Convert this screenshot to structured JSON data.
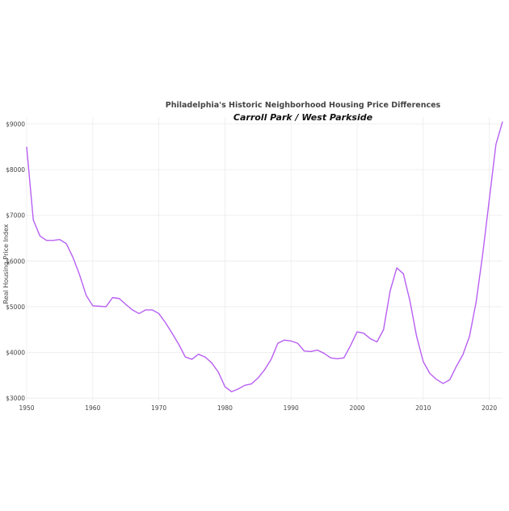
{
  "chart_data": {
    "type": "line",
    "title": "Philadelphia's Historic Neighborhood Housing Price Differences",
    "subtitle": "Carroll Park / West Parkside",
    "xlabel": "",
    "ylabel": "Real Housing Price Index",
    "xlim": [
      1950,
      2022
    ],
    "ylim": [
      2950,
      9150
    ],
    "x_ticks": [
      1950,
      1960,
      1970,
      1980,
      1990,
      2000,
      2010,
      2020
    ],
    "y_ticks": [
      3000,
      4000,
      5000,
      6000,
      7000,
      8000,
      9000
    ],
    "y_tick_labels": [
      "$3000",
      "$4000",
      "$5000",
      "$6000",
      "$7000",
      "$8000",
      "$9000"
    ],
    "grid": true,
    "line_color": "#b85ff2",
    "series": [
      {
        "x": [
          1950,
          1951,
          1952,
          1953,
          1954,
          1955,
          1956,
          1957,
          1958,
          1959,
          1960,
          1961,
          1962,
          1963,
          1964,
          1965,
          1966,
          1967,
          1968,
          1969,
          1970,
          1971,
          1972,
          1973,
          1974,
          1975,
          1976,
          1977,
          1978,
          1979,
          1980,
          1981,
          1982,
          1983,
          1984,
          1985,
          1986,
          1987,
          1988,
          1989,
          1990,
          1991,
          1992,
          1993,
          1994,
          1995,
          1996,
          1997,
          1998,
          1999,
          2000,
          2001,
          2002,
          2003,
          2004,
          2005,
          2006,
          2007,
          2008,
          2009,
          2010,
          2011,
          2012,
          2013,
          2014,
          2015,
          2016,
          2017,
          2018,
          2019,
          2020,
          2021,
          2022
        ],
        "values": [
          8500,
          6900,
          6550,
          6450,
          6450,
          6470,
          6380,
          6080,
          5700,
          5250,
          5020,
          5010,
          5000,
          5200,
          5180,
          5050,
          4930,
          4850,
          4930,
          4930,
          4850,
          4650,
          4420,
          4180,
          3900,
          3850,
          3960,
          3900,
          3770,
          3570,
          3250,
          3140,
          3200,
          3280,
          3310,
          3440,
          3620,
          3850,
          4200,
          4270,
          4250,
          4200,
          4030,
          4020,
          4050,
          3980,
          3880,
          3860,
          3880,
          4150,
          4450,
          4420,
          4300,
          4230,
          4500,
          5350,
          5850,
          5720,
          5120,
          4350,
          3800,
          3540,
          3410,
          3320,
          3400,
          3690,
          3950,
          4350,
          5100,
          6150,
          7350,
          8550,
          9050
        ]
      }
    ]
  }
}
